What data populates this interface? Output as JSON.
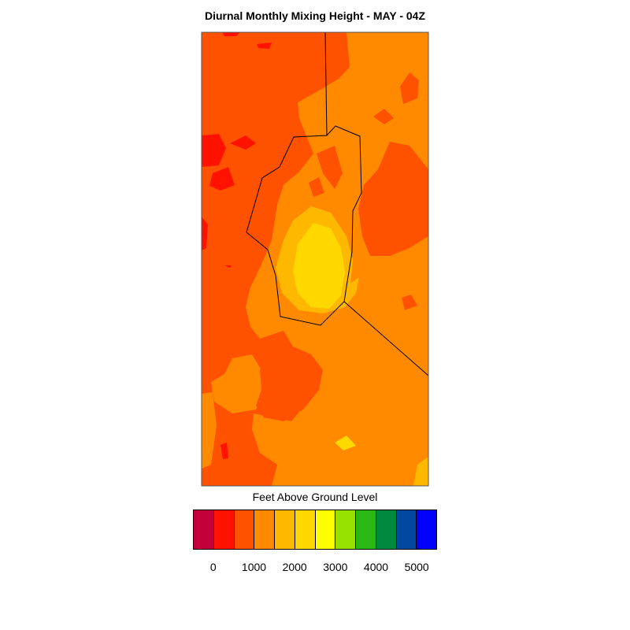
{
  "title": "Diurnal Monthly Mixing Height - MAY - 04Z",
  "legend": {
    "title": "Feet Above Ground Level",
    "colors": [
      "#c4003a",
      "#ff1200",
      "#ff5200",
      "#ff8a00",
      "#ffb800",
      "#ffd800",
      "#ffff00",
      "#98e000",
      "#2ab814",
      "#008a40",
      "#0048a0",
      "#0000ff"
    ],
    "ticks": [
      "0",
      "1000",
      "2000",
      "3000",
      "4000",
      "5000"
    ]
  },
  "map_colors": {
    "red": "#ff1200",
    "red_orange": "#ff5200",
    "orange": "#ff8a00",
    "amber": "#ffb800",
    "gold": "#ffd800",
    "boundary": "#000000"
  }
}
